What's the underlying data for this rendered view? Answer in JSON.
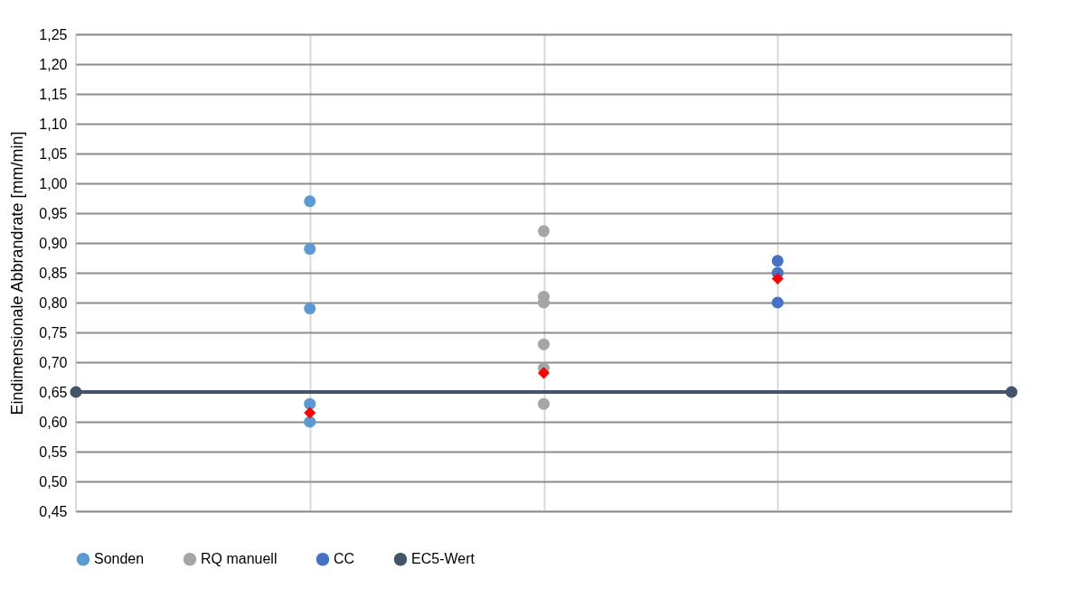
{
  "chart_data": {
    "type": "scatter",
    "ylabel": "Eindimensionale Abbrandrate [mm/min]",
    "categories": [
      null,
      null,
      null
    ],
    "ylim": [
      0.45,
      1.25
    ],
    "yticks": [
      {
        "value": 0.45,
        "label": "0,45"
      },
      {
        "value": 0.5,
        "label": "0,50"
      },
      {
        "value": 0.55,
        "label": "0,55"
      },
      {
        "value": 0.6,
        "label": "0,60"
      },
      {
        "value": 0.65,
        "label": "0,65"
      },
      {
        "value": 0.7,
        "label": "0,70"
      },
      {
        "value": 0.75,
        "label": "0,75"
      },
      {
        "value": 0.8,
        "label": "0,80"
      },
      {
        "value": 0.85,
        "label": "0,85"
      },
      {
        "value": 0.9,
        "label": "0,90"
      },
      {
        "value": 0.95,
        "label": "0,95"
      },
      {
        "value": 1.0,
        "label": "1,00"
      },
      {
        "value": 1.05,
        "label": "1,05"
      },
      {
        "value": 1.1,
        "label": "1,10"
      },
      {
        "value": 1.15,
        "label": "1,15"
      },
      {
        "value": 1.2,
        "label": "1,20"
      },
      {
        "value": 1.25,
        "label": "1,25"
      }
    ],
    "tick_labels": "y",
    "grid": true,
    "legend": "bottom",
    "marker": "circle",
    "ref_lines": [
      {
        "axis": "y",
        "value": 0.65,
        "label": "EC5-Wert",
        "color": "#44546a"
      }
    ],
    "series": [
      {
        "name": "Sonden",
        "color": "#5b9bd5",
        "values": [
          0.97,
          null,
          null
        ]
      },
      {
        "color": "#5b9bd5",
        "values": [
          0.89,
          null,
          null
        ]
      },
      {
        "color": "#5b9bd5",
        "values": [
          0.79,
          null,
          null
        ]
      },
      {
        "color": "#5b9bd5",
        "values": [
          0.63,
          null,
          null
        ]
      },
      {
        "color": "#5b9bd5",
        "values": [
          0.6,
          null,
          null
        ]
      },
      {
        "name": "RQ manuell",
        "color": "#a5a5a5",
        "values": [
          null,
          0.92,
          null
        ]
      },
      {
        "color": "#a5a5a5",
        "values": [
          null,
          0.81,
          null
        ]
      },
      {
        "color": "#a5a5a5",
        "values": [
          null,
          0.8,
          null
        ]
      },
      {
        "color": "#a5a5a5",
        "values": [
          null,
          0.73,
          null
        ]
      },
      {
        "color": "#a5a5a5",
        "values": [
          null,
          0.69,
          null
        ]
      },
      {
        "color": "#a5a5a5",
        "values": [
          null,
          0.63,
          null
        ]
      },
      {
        "name": "CC",
        "color": "#4472c4",
        "values": [
          null,
          null,
          0.87
        ]
      },
      {
        "color": "#4472c4",
        "values": [
          null,
          null,
          0.85
        ]
      },
      {
        "color": "#4472c4",
        "values": [
          null,
          null,
          0.8
        ]
      },
      {
        "color": "#ff0000",
        "marker": "diamond",
        "values": [
          0.615,
          0.682,
          0.84
        ]
      }
    ]
  }
}
